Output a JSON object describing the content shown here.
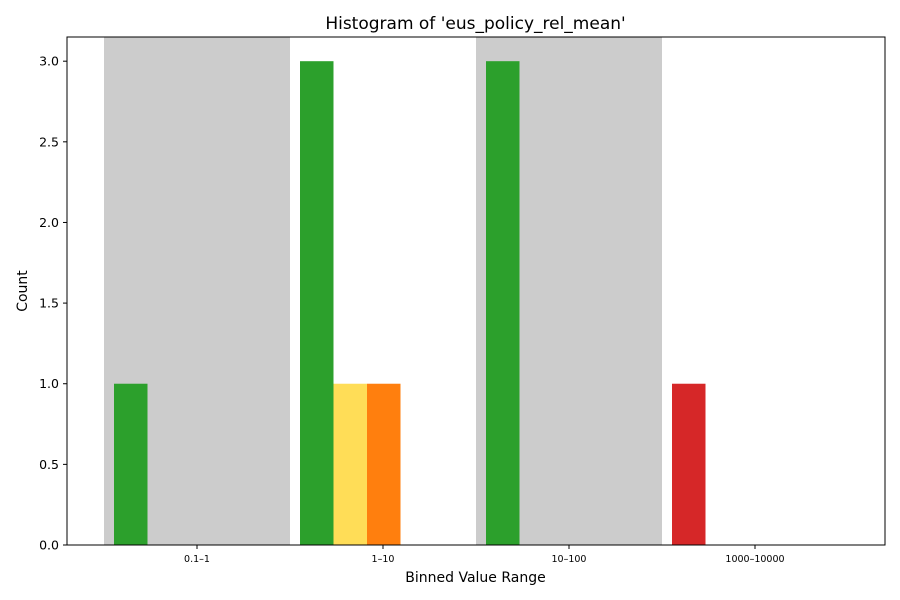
{
  "chart_data": {
    "type": "bar",
    "title": "Histogram of 'eus_policy_rel_mean'",
    "xlabel": "Binned Value Range",
    "ylabel": "Count",
    "ylim": [
      0,
      3.15
    ],
    "yticks": [
      0.0,
      0.5,
      1.0,
      1.5,
      2.0,
      2.5,
      3.0
    ],
    "ytick_labels": [
      "0.0",
      "0.5",
      "1.0",
      "1.5",
      "2.0",
      "2.5",
      "3.0"
    ],
    "categories": [
      "0.1–1",
      "1–10",
      "10–100",
      "1000–10000"
    ],
    "shaded_categories": [
      "0.1–1",
      "10–100"
    ],
    "shade_color": "#cccccc",
    "grid": false,
    "legend": "none",
    "series": [
      {
        "color": "#2ca02c",
        "values": [
          1,
          3,
          3,
          0
        ]
      },
      {
        "color": "#ffdd57",
        "values": [
          0,
          1,
          0,
          0
        ]
      },
      {
        "color": "#ff7f0e",
        "values": [
          0,
          1,
          0,
          0
        ]
      },
      {
        "color": "#d62728",
        "values": [
          0,
          0,
          0,
          1
        ]
      }
    ]
  }
}
